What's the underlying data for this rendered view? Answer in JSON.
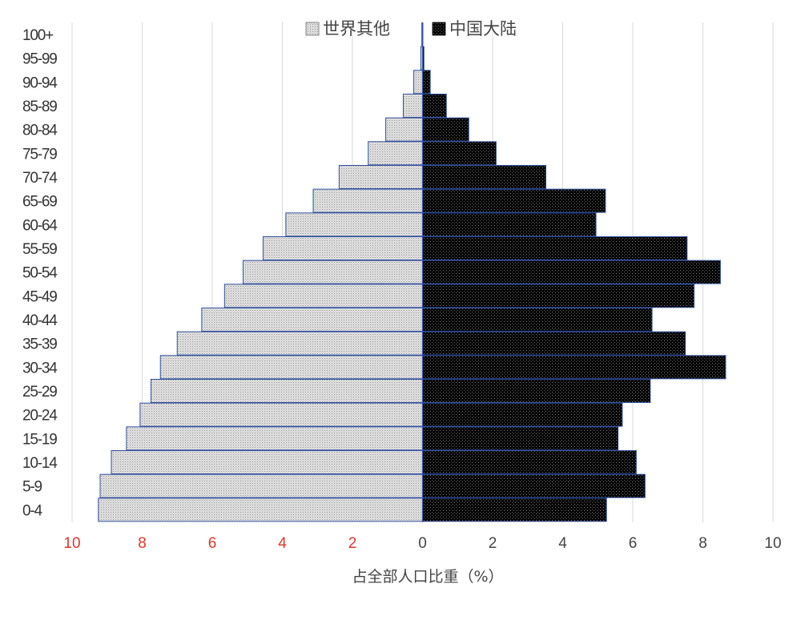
{
  "chart_data": {
    "type": "bar",
    "orientation": "horizontal",
    "subtype": "population-pyramid",
    "categories": [
      "0-4",
      "5-9",
      "10-14",
      "15-19",
      "20-24",
      "25-29",
      "30-34",
      "35-39",
      "40-44",
      "45-49",
      "50-54",
      "55-59",
      "60-64",
      "65-69",
      "70-74",
      "75-79",
      "80-84",
      "85-89",
      "90-94",
      "95-99",
      "100+"
    ],
    "series": [
      {
        "name": "世界其他",
        "side": "left",
        "color": "#d9d9d9",
        "pattern": "dotted-light",
        "values": [
          9.25,
          9.2,
          8.88,
          8.45,
          8.06,
          7.75,
          7.48,
          7.0,
          6.3,
          5.65,
          5.12,
          4.55,
          3.9,
          3.12,
          2.38,
          1.55,
          1.05,
          0.55,
          0.25,
          0.05,
          0.02
        ]
      },
      {
        "name": "中国大陆",
        "side": "right",
        "color": "#000000",
        "pattern": "dotted-dark",
        "values": [
          5.25,
          6.35,
          6.1,
          5.58,
          5.7,
          6.5,
          8.65,
          7.5,
          6.55,
          7.75,
          8.5,
          7.55,
          4.95,
          5.22,
          3.52,
          2.1,
          1.32,
          0.68,
          0.22,
          0.04,
          0.01
        ]
      }
    ],
    "xaxis": {
      "label": "占全部人口比重（%）",
      "range": [
        -10,
        10
      ],
      "ticks": [
        -10,
        -8,
        -6,
        -4,
        -2,
        0,
        2,
        4,
        6,
        8,
        10
      ],
      "tick_labels": [
        "10",
        "8",
        "6",
        "4",
        "2",
        "0",
        "2",
        "4",
        "6",
        "8",
        "10"
      ],
      "left_tick_color": "#e0352b",
      "right_tick_color": "#444444"
    },
    "yaxis": {
      "label": ""
    },
    "grid": "vertical",
    "legend": "top-center"
  }
}
